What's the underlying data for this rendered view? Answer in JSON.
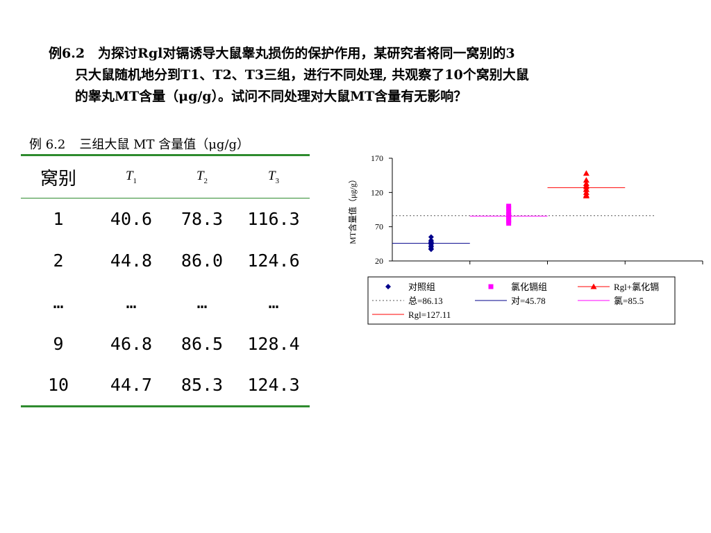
{
  "problem": {
    "lines": [
      "例6.2　为探讨Rgl对镉诱导大鼠睾丸损伤的保护作用，某研究者将同一窝别的3",
      "只大鼠随机地分到T1、T2、T3三组，进行不同处理, 共观察了10个窝别大鼠",
      "的睾丸MT含量（μg/g）。试问不同处理对大鼠MT含量有无影响？"
    ]
  },
  "table": {
    "caption_id": "例 6.2",
    "caption_title": "三组大鼠 MT 含量值（μg/g）",
    "header_group": "窝别",
    "header_t_letter": "T",
    "header_t_subs": [
      "1",
      "2",
      "3"
    ],
    "rows": [
      [
        "1",
        "40.6",
        "78.3",
        "116.3"
      ],
      [
        "2",
        "44.8",
        "86.0",
        "124.6"
      ],
      [
        "…",
        "…",
        "…",
        "…"
      ],
      [
        "9",
        "46.8",
        "86.5",
        "128.4"
      ],
      [
        "10",
        "44.7",
        "85.3",
        "124.3"
      ]
    ]
  },
  "chart_data": {
    "type": "scatter",
    "ylabel": "MT含量值（μg/g）",
    "ylim": [
      20,
      170
    ],
    "yticks": [
      "20",
      "70",
      "120",
      "170"
    ],
    "grid": false,
    "legend_placement": "bottom",
    "series": [
      {
        "name": "对照组",
        "x": 1,
        "values": [
          40.6,
          44.8,
          46.8,
          44.7,
          38,
          42,
          48,
          50,
          55,
          37
        ],
        "color": "#00008b",
        "marker": "diamond"
      },
      {
        "name": "氯化镉组",
        "x": 2,
        "values": [
          78.3,
          86.0,
          86.5,
          85.3,
          75,
          80,
          88,
          92,
          97,
          100
        ],
        "color": "#ff00ff",
        "marker": "square"
      },
      {
        "name": "Rgl+氯化镉",
        "x": 3,
        "values": [
          116.3,
          124.6,
          128.4,
          124.3,
          115,
          120,
          130,
          133,
          138,
          148
        ],
        "color": "#ff0000",
        "marker": "triangle"
      }
    ],
    "reference_lines": [
      {
        "label": "总=86.13",
        "value": 86.13,
        "color": "#555555",
        "style": "dotted",
        "x_span": [
          0.5,
          3.9
        ]
      },
      {
        "label": "对=45.78",
        "value": 45.78,
        "color": "#00008b",
        "style": "solid",
        "x_span": [
          0.5,
          1.5
        ]
      },
      {
        "label": "氯=85.5",
        "value": 85.5,
        "color": "#ff00ff",
        "style": "solid",
        "x_span": [
          1.5,
          2.5
        ]
      },
      {
        "label": "Rgl=127.11",
        "value": 127.11,
        "color": "#ff0000",
        "style": "solid",
        "x_span": [
          2.5,
          3.5
        ]
      }
    ]
  }
}
